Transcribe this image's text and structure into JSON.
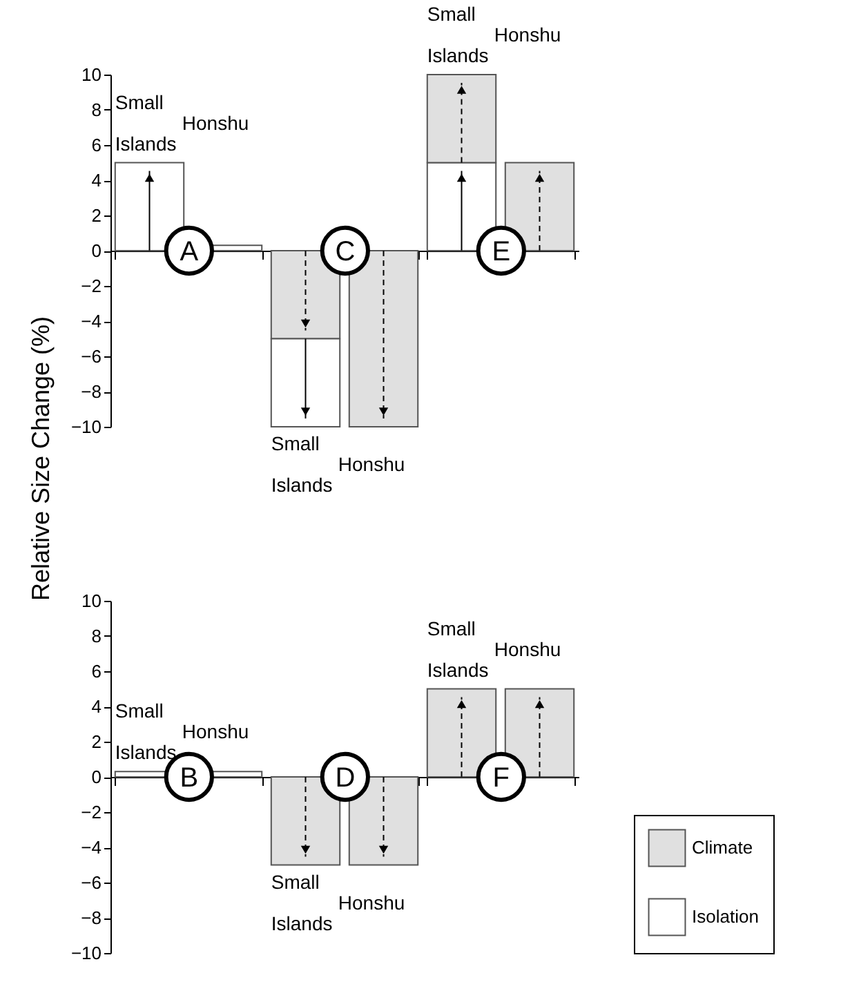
{
  "chart_data": [
    {
      "type": "bar",
      "ylabel": "Relative Size Change (%)",
      "categories": [
        "Small Islands",
        "Honshu"
      ],
      "series": [
        {
          "color": "#ffffff",
          "line_style": "solid",
          "values": [
            5,
            0.3
          ]
        }
      ],
      "annotations": [
        "A"
      ],
      "ylim": [
        -10,
        10
      ],
      "yticks": [
        -10,
        -8,
        -6,
        -4,
        -2,
        0,
        2,
        4,
        6,
        8,
        10
      ]
    },
    {
      "type": "bar",
      "categories": [
        "Small Islands",
        "Honshu"
      ],
      "series": [
        {
          "color": "#e0e0e0",
          "line_style": "dashed",
          "values": [
            -5,
            -10
          ]
        },
        {
          "color": "#ffffff",
          "line_style": "solid",
          "values": [
            -5,
            null
          ]
        }
      ],
      "stacked": true,
      "annotations": [
        "C"
      ],
      "ylim": [
        -10,
        10
      ],
      "yticks": [
        -10,
        -8,
        -6,
        -4,
        -2,
        0,
        2,
        4,
        6,
        8,
        10
      ],
      "tick_labels": false
    },
    {
      "type": "bar",
      "categories": [
        "Small Islands",
        "Honshu"
      ],
      "series": [
        {
          "color": "#ffffff",
          "line_style": "solid",
          "values": [
            5,
            null
          ]
        },
        {
          "color": "#e0e0e0",
          "line_style": "dashed",
          "values": [
            5,
            5
          ]
        }
      ],
      "stacked": true,
      "annotations": [
        "E"
      ],
      "ylim": [
        -10,
        10
      ],
      "yticks": [
        -10,
        -8,
        -6,
        -4,
        -2,
        0,
        2,
        4,
        6,
        8,
        10
      ],
      "tick_labels": false
    },
    {
      "type": "bar",
      "categories": [
        "Small Islands",
        "Honshu"
      ],
      "series": [
        {
          "color": "#ffffff",
          "values": [
            0.3,
            0.3
          ]
        }
      ],
      "annotations": [
        "B"
      ],
      "ylim": [
        -10,
        10
      ],
      "yticks": [
        -10,
        -8,
        -6,
        -4,
        -2,
        0,
        2,
        4,
        6,
        8,
        10
      ]
    },
    {
      "type": "bar",
      "categories": [
        "Small Islands",
        "Honshu"
      ],
      "series": [
        {
          "color": "#e0e0e0",
          "line_style": "dashed",
          "values": [
            -5,
            -5
          ]
        }
      ],
      "annotations": [
        "D"
      ],
      "ylim": [
        -10,
        10
      ],
      "yticks": [
        -10,
        -8,
        -6,
        -4,
        -2,
        0,
        2,
        4,
        6,
        8,
        10
      ],
      "tick_labels": false
    },
    {
      "type": "bar",
      "categories": [
        "Small Islands",
        "Honshu"
      ],
      "series": [
        {
          "name": "Climate",
          "color": "#e0e0e0",
          "line_style": "dashed",
          "values": [
            5,
            5
          ]
        },
        {
          "name": "Isolation",
          "color": "#ffffff",
          "values": [
            null,
            null
          ]
        }
      ],
      "annotations": [
        "F"
      ],
      "ylim": [
        -10,
        10
      ],
      "yticks": [
        -10,
        -8,
        -6,
        -4,
        -2,
        0,
        2,
        4,
        6,
        8,
        10
      ],
      "tick_labels": false,
      "legend": "bottom right"
    }
  ]
}
